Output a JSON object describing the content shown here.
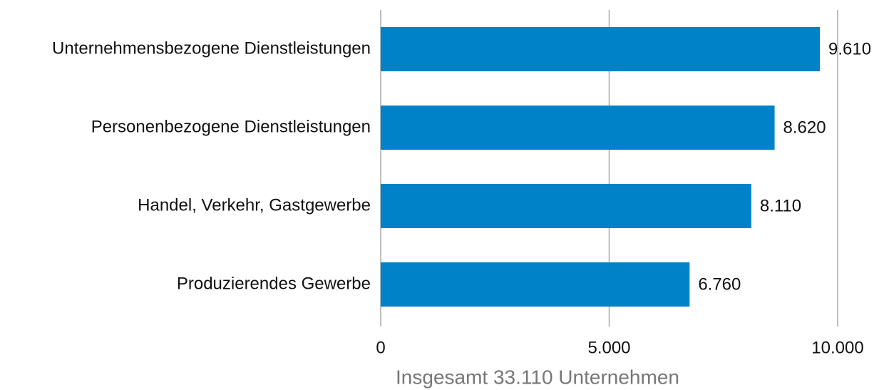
{
  "chart_data": {
    "type": "bar",
    "orientation": "horizontal",
    "categories": [
      "Unternehmensbezogene Dienstleistungen",
      "Personenbezogene Dienstleistungen",
      "Handel, Verkehr, Gastgewerbe",
      "Produzierendes Gewerbe"
    ],
    "values": [
      9610,
      8620,
      8110,
      6760
    ],
    "value_labels": [
      "9.610",
      "8.620",
      "8.110",
      "6.760"
    ],
    "color": "#0082c8",
    "xlabel": "Insgesamt 33.110 Unternehmen",
    "xlim": [
      0,
      10000
    ],
    "xticks": [
      0,
      {
        "value": 5000,
        "label": "5.000"
      },
      {
        "value": 10000,
        "label": "10.000"
      }
    ],
    "grid": true
  }
}
